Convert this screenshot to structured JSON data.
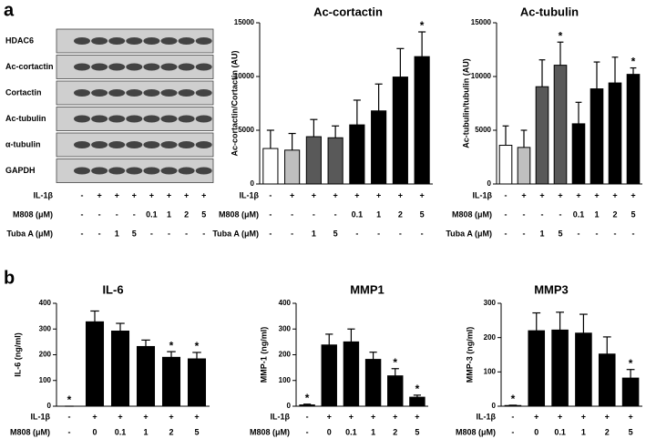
{
  "panel_labels": [
    "a",
    "b"
  ],
  "blot": {
    "bands": [
      "HDAC6",
      "Ac-cortactin",
      "Cortactin",
      "Ac-tubulin",
      "α-tubulin",
      "GAPDH"
    ],
    "treatments": [
      {
        "name": "IL-1β",
        "values": [
          "-",
          "+",
          "+",
          "+",
          "+",
          "+",
          "+",
          "+"
        ]
      },
      {
        "name": "M808 (μM)",
        "values": [
          "-",
          "-",
          "-",
          "-",
          "0.1",
          "1",
          "2",
          "5"
        ]
      },
      {
        "name": "Tuba A (μM)",
        "values": [
          "-",
          "-",
          "1",
          "5",
          "-",
          "-",
          "-",
          "-"
        ]
      }
    ]
  },
  "chart_data": [
    {
      "type": "bar",
      "title": "Ac-cortactin",
      "y_label": "Ac-cortactin/Cortactin (AU)",
      "values": [
        3300,
        3150,
        4400,
        4300,
        5500,
        6800,
        9950,
        11850
      ],
      "errors": [
        1700,
        1550,
        1600,
        1100,
        2300,
        2500,
        2650,
        2300
      ],
      "significance": [
        null,
        null,
        null,
        null,
        null,
        null,
        null,
        "*"
      ],
      "colors": [
        "#ffffff",
        "#bfbfbf",
        "#595959",
        "#595959",
        "#000000",
        "#000000",
        "#000000",
        "#000000"
      ],
      "ylim": [
        0,
        15000
      ],
      "yticks": [
        0,
        5000,
        10000,
        15000
      ],
      "treatments": [
        {
          "name": "IL-1β",
          "values": [
            "-",
            "+",
            "+",
            "+",
            "+",
            "+",
            "+",
            "+"
          ]
        },
        {
          "name": "M808 (μM)",
          "values": [
            "-",
            "-",
            "-",
            "-",
            "0.1",
            "1",
            "2",
            "5"
          ]
        },
        {
          "name": "Tuba A (μM)",
          "values": [
            "-",
            "-",
            "1",
            "5",
            "-",
            "-",
            "-",
            "-"
          ]
        }
      ]
    },
    {
      "type": "bar",
      "title": "Ac-tubulin",
      "y_label": "Ac-tubulin/tubulin (AU)",
      "values": [
        3600,
        3400,
        9050,
        11050,
        5600,
        8850,
        9400,
        10200
      ],
      "errors": [
        1800,
        1600,
        2500,
        2150,
        2000,
        2500,
        2400,
        600
      ],
      "significance": [
        null,
        null,
        null,
        "*",
        null,
        null,
        null,
        "*"
      ],
      "colors": [
        "#ffffff",
        "#bfbfbf",
        "#595959",
        "#595959",
        "#000000",
        "#000000",
        "#000000",
        "#000000"
      ],
      "ylim": [
        0,
        15000
      ],
      "yticks": [
        0,
        5000,
        10000,
        15000
      ],
      "treatments": [
        {
          "name": "IL-1β",
          "values": [
            "-",
            "+",
            "+",
            "+",
            "+",
            "+",
            "+",
            "+"
          ]
        },
        {
          "name": "M808 (μM)",
          "values": [
            "-",
            "-",
            "-",
            "-",
            "0.1",
            "1",
            "2",
            "5"
          ]
        },
        {
          "name": "Tuba A (μM)",
          "values": [
            "-",
            "-",
            "1",
            "5",
            "-",
            "-",
            "-",
            "-"
          ]
        }
      ]
    },
    {
      "type": "bar",
      "title": "IL-6",
      "y_label": "IL-6 (ng/ml)",
      "values": [
        0,
        328,
        292,
        232,
        190,
        184
      ],
      "errors": [
        0,
        42,
        30,
        25,
        22,
        25
      ],
      "significance": [
        "*",
        null,
        null,
        null,
        "*",
        "*"
      ],
      "colors": [
        "#000000",
        "#000000",
        "#000000",
        "#000000",
        "#000000",
        "#000000"
      ],
      "ylim": [
        0,
        400
      ],
      "yticks": [
        0,
        100,
        200,
        300,
        400
      ],
      "treatments": [
        {
          "name": "IL-1β",
          "values": [
            "-",
            "+",
            "+",
            "+",
            "+",
            "+"
          ]
        },
        {
          "name": "M808 (μM)",
          "values": [
            "-",
            "0",
            "0.1",
            "1",
            "2",
            "5"
          ]
        }
      ]
    },
    {
      "type": "bar",
      "title": "MMP1",
      "y_label": "MMP-1 (ng/ml)",
      "values": [
        5,
        238,
        250,
        182,
        118,
        35
      ],
      "errors": [
        3,
        42,
        50,
        28,
        28,
        8
      ],
      "significance": [
        "*",
        null,
        null,
        null,
        "*",
        "*"
      ],
      "colors": [
        "#000000",
        "#000000",
        "#000000",
        "#000000",
        "#000000",
        "#000000"
      ],
      "ylim": [
        0,
        400
      ],
      "yticks": [
        0,
        100,
        200,
        300,
        400
      ],
      "treatments": [
        {
          "name": "IL-1β",
          "values": [
            "-",
            "+",
            "+",
            "+",
            "+",
            "+"
          ]
        },
        {
          "name": "M808 (μM)",
          "values": [
            "-",
            "0",
            "0.1",
            "1",
            "2",
            "5"
          ]
        }
      ]
    },
    {
      "type": "bar",
      "title": "MMP3",
      "y_label": "MMP-3 (ng/ml)",
      "values": [
        2,
        220,
        222,
        213,
        152,
        82
      ],
      "errors": [
        1,
        52,
        52,
        55,
        50,
        25
      ],
      "significance": [
        "*",
        null,
        null,
        null,
        null,
        "*"
      ],
      "colors": [
        "#000000",
        "#000000",
        "#000000",
        "#000000",
        "#000000",
        "#000000"
      ],
      "ylim": [
        0,
        300
      ],
      "yticks": [
        0,
        100,
        200,
        300
      ],
      "treatments": [
        {
          "name": "IL-1β",
          "values": [
            "-",
            "+",
            "+",
            "+",
            "+",
            "+"
          ]
        },
        {
          "name": "M808 (μM)",
          "values": [
            "-",
            "0",
            "0.1",
            "1",
            "2",
            "5"
          ]
        }
      ]
    }
  ]
}
